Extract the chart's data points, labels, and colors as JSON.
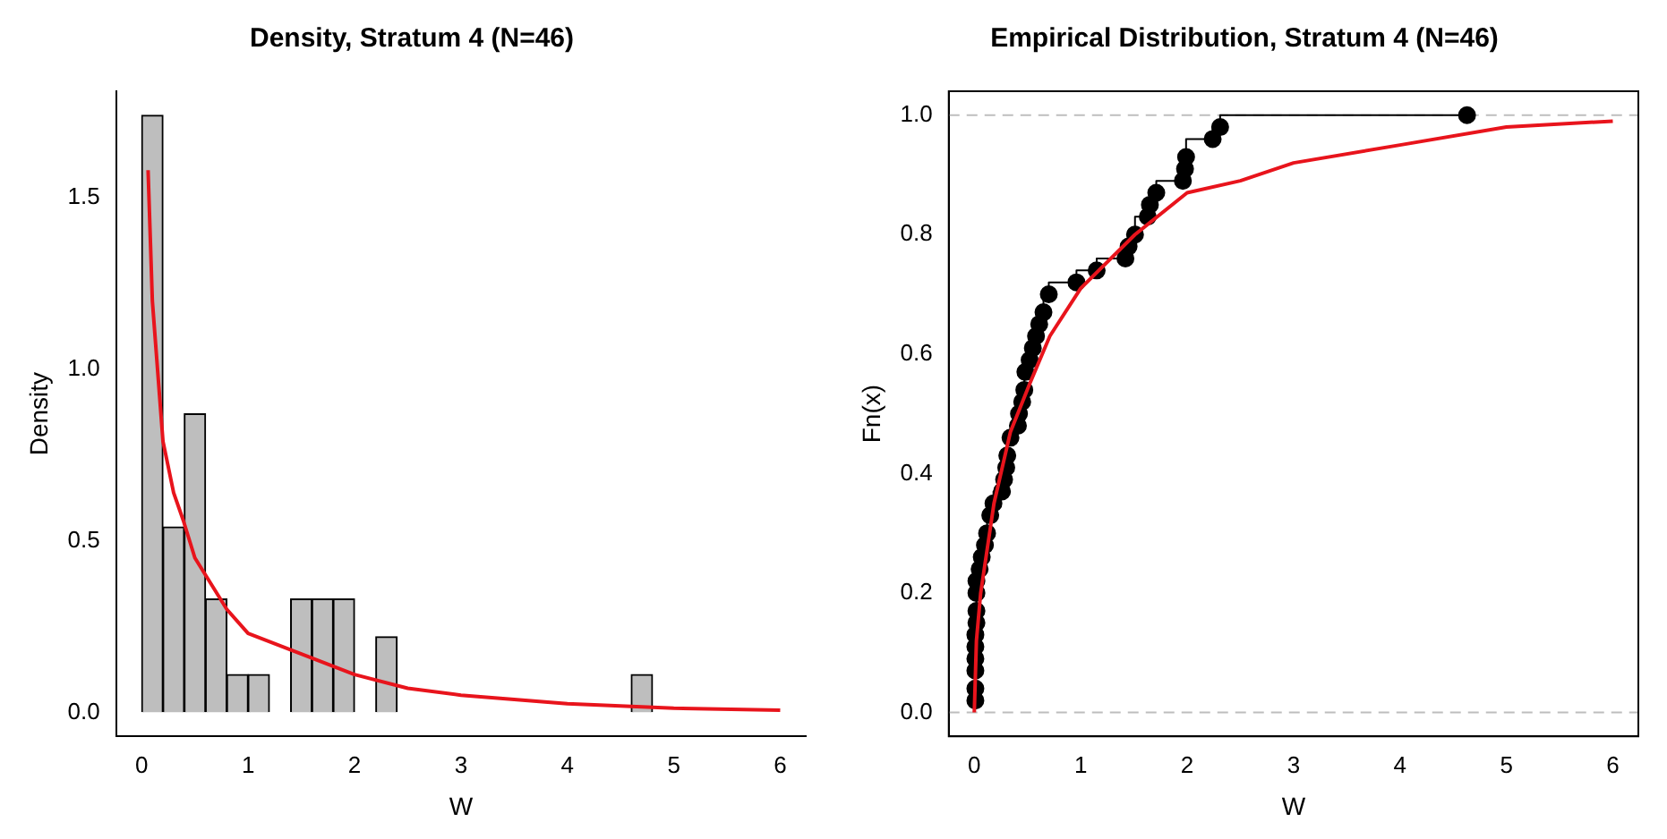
{
  "chart_data": [
    {
      "type": "histogram",
      "title": "Density, Stratum 4 (N=46)",
      "xlabel": "W",
      "ylabel": "Density",
      "xlim": [
        -0.24,
        6.24
      ],
      "ylim": [
        -0.07,
        1.81
      ],
      "xticks": [
        0,
        1,
        2,
        3,
        4,
        5,
        6
      ],
      "yticks": [
        {
          "value": 0,
          "label": "0.0"
        },
        {
          "value": 0.5,
          "label": "0.5"
        },
        {
          "value": 1,
          "label": "1.0"
        },
        {
          "value": 1.5,
          "label": "1.5"
        }
      ],
      "grid": false,
      "legend": false,
      "series": [
        {
          "type": "histogram",
          "color": "#bebebe",
          "bins": [
            0,
            0.2,
            0.4,
            0.6,
            0.8,
            1,
            1.2,
            1.4,
            1.6,
            1.8,
            2,
            2.2,
            2.4,
            2.6,
            2.8,
            3,
            3.2,
            3.4,
            3.6,
            3.8,
            4,
            4.2,
            4.4,
            4.6,
            4.8
          ],
          "values": [
            1.74,
            0.54,
            0.87,
            0.33,
            0.11,
            0.11,
            0,
            0.33,
            0.33,
            0.33,
            0,
            0.22,
            0,
            0,
            0,
            0,
            0,
            0,
            0,
            0,
            0,
            0,
            0,
            0.11
          ]
        },
        {
          "type": "line",
          "color": "#e8141c",
          "x": [
            0.06,
            0.1,
            0.2,
            0.3,
            0.39,
            0.5,
            0.8,
            1,
            1.5,
            2,
            2.5,
            3,
            4,
            5,
            6
          ],
          "values": [
            1.58,
            1.2,
            0.79,
            0.64,
            0.56,
            0.45,
            0.3,
            0.23,
            0.17,
            0.11,
            0.07,
            0.05,
            0.025,
            0.012,
            0.006
          ]
        }
      ]
    },
    {
      "type": "step",
      "title": "Empirical Distribution, Stratum 4 (N=46)",
      "xlabel": "W",
      "ylabel": "Fn(x)",
      "xlim": [
        -0.24,
        6.24
      ],
      "ylim": [
        -0.04,
        1.04
      ],
      "xticks": [
        0,
        1,
        2,
        3,
        4,
        5,
        6
      ],
      "yticks": [
        {
          "value": 0,
          "label": "0.0"
        },
        {
          "value": 0.2,
          "label": "0.2"
        },
        {
          "value": 0.4,
          "label": "0.4"
        },
        {
          "value": 0.6,
          "label": "0.6"
        },
        {
          "value": 0.8,
          "label": "0.8"
        },
        {
          "value": 1,
          "label": "1.0"
        }
      ],
      "grid": false,
      "legend": false,
      "ref_lines": [
        {
          "axis": "y",
          "value": 0,
          "color": "#bebebe",
          "line_style": "dashed"
        },
        {
          "axis": "y",
          "value": 1,
          "color": "#bebebe",
          "line_style": "dashed"
        }
      ],
      "series": [
        {
          "type": "step",
          "color": "#000000",
          "marker": "circle",
          "x": [
            0.01,
            0.01,
            0.01,
            0.01,
            0.01,
            0.01,
            0.02,
            0.02,
            0.02,
            0.02,
            0.05,
            0.07,
            0.1,
            0.12,
            0.15,
            0.18,
            0.26,
            0.28,
            0.3,
            0.31,
            0.34,
            0.41,
            0.42,
            0.45,
            0.47,
            0.48,
            0.52,
            0.55,
            0.58,
            0.61,
            0.65,
            0.7,
            0.96,
            1.15,
            1.42,
            1.45,
            1.51,
            1.63,
            1.65,
            1.71,
            1.96,
            1.98,
            1.99,
            2.24,
            2.31,
            4.63
          ],
          "values": [
            0.02,
            0.04,
            0.07,
            0.09,
            0.11,
            0.13,
            0.15,
            0.17,
            0.2,
            0.22,
            0.24,
            0.26,
            0.28,
            0.3,
            0.33,
            0.35,
            0.37,
            0.39,
            0.41,
            0.43,
            0.46,
            0.48,
            0.5,
            0.52,
            0.54,
            0.57,
            0.59,
            0.61,
            0.63,
            0.65,
            0.67,
            0.7,
            0.72,
            0.74,
            0.76,
            0.78,
            0.8,
            0.83,
            0.85,
            0.87,
            0.89,
            0.91,
            0.93,
            0.96,
            0.98,
            1
          ]
        },
        {
          "type": "line",
          "color": "#e8141c",
          "x": [
            0,
            0.02,
            0.06,
            0.185,
            0.34,
            0.52,
            0.71,
            1,
            1.51,
            2,
            2.5,
            3,
            4,
            5,
            6
          ],
          "values": [
            0,
            0.12,
            0.2,
            0.35,
            0.47,
            0.55,
            0.63,
            0.71,
            0.8,
            0.87,
            0.89,
            0.92,
            0.95,
            0.98,
            0.99
          ]
        }
      ]
    }
  ]
}
